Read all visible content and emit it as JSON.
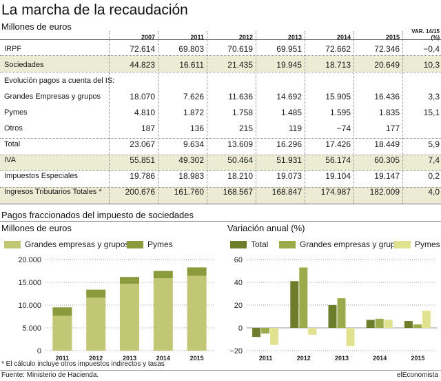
{
  "title": "La marcha de la recaudación",
  "subtitle": "Millones de euros",
  "colors": {
    "band": "#ecebd4",
    "grandes": "#c2c776",
    "pymes": "#8b9a3c",
    "total": "#6d7d2c",
    "grandes_var": "#9bab4b",
    "pymes_var": "#e1e28f"
  },
  "table": {
    "columns": [
      "2007",
      "2011",
      "2012",
      "2013",
      "2014",
      "2015",
      "VAR. 14/15 (%)"
    ],
    "rows": [
      {
        "label": "IRPF",
        "values": [
          "72.614",
          "69.803",
          "70.619",
          "69.951",
          "72.662",
          "72.346",
          "−0,4"
        ]
      },
      {
        "label": "Sociedades",
        "values": [
          "44.823",
          "16.611",
          "21.435",
          "19.945",
          "18.713",
          "20.649",
          "10,3"
        ]
      },
      {
        "label": "Evolución pagos a cuenta del IS:",
        "values": []
      },
      {
        "label": "Grandes Empresas y grupos",
        "values": [
          "18.070",
          "7.626",
          "11.636",
          "14.692",
          "15.905",
          "16.436",
          "3,3"
        ]
      },
      {
        "label": "Pymes",
        "values": [
          "4.810",
          "1.872",
          "1.758",
          "1.485",
          "1.595",
          "1.835",
          "15,1"
        ]
      },
      {
        "label": "Otros",
        "values": [
          "187",
          "136",
          "215",
          "119",
          "−74",
          "177",
          ""
        ]
      },
      {
        "label": "Total",
        "values": [
          "23.067",
          "9.634",
          "13.609",
          "16.296",
          "17.426",
          "18.449",
          "5,9"
        ]
      },
      {
        "label": "IVA",
        "values": [
          "55.851",
          "49.302",
          "50.464",
          "51.931",
          "56.174",
          "60.305",
          "7,4"
        ]
      },
      {
        "label": "Impuestos Especiales",
        "values": [
          "19.786",
          "18.983",
          "18.210",
          "19.073",
          "19.104",
          "19.147",
          "0,2"
        ]
      },
      {
        "label": "Ingresos Tributarios Totales *",
        "values": [
          "200.676",
          "161.760",
          "168.567",
          "168.847",
          "174.987",
          "182.009",
          "4,0"
        ]
      }
    ]
  },
  "section_title": "Pagos fraccionados del impuesto de sociedades",
  "chart_data": [
    {
      "type": "bar",
      "title": "Millones de euros",
      "stacked": true,
      "categories": [
        "2011",
        "2012",
        "2013",
        "2014",
        "2015"
      ],
      "series": [
        {
          "name": "Grandes empresas y grupos",
          "values": [
            7626,
            11636,
            14692,
            15905,
            16436
          ]
        },
        {
          "name": "Pymes",
          "values": [
            1872,
            1758,
            1485,
            1595,
            1835
          ]
        }
      ],
      "ylim": [
        0,
        20000
      ],
      "yticks": [
        "0",
        "5.000",
        "10.000",
        "15.000",
        "20.000"
      ],
      "grid": true,
      "legend": "top"
    },
    {
      "type": "bar",
      "title": "Variación anual (%)",
      "stacked": false,
      "categories": [
        "2011",
        "2012",
        "2013",
        "2014",
        "2015"
      ],
      "series": [
        {
          "name": "Total",
          "values": [
            -8,
            41,
            20,
            7,
            6
          ]
        },
        {
          "name": "Grandes empresas y grupos",
          "values": [
            -5,
            53,
            26,
            8,
            3
          ]
        },
        {
          "name": "Pymes",
          "values": [
            -15,
            -6,
            -16,
            7,
            15
          ]
        }
      ],
      "ylim": [
        -20,
        60
      ],
      "yticks": [
        "−20",
        "0",
        "20",
        "40",
        "60"
      ],
      "grid": true,
      "legend": "top"
    }
  ],
  "footnote": "* El cálculo incluye otros impuestos indirectos y tasas",
  "source": "Fuente: Ministerio de Hacienda.",
  "brand": "elEconomista"
}
